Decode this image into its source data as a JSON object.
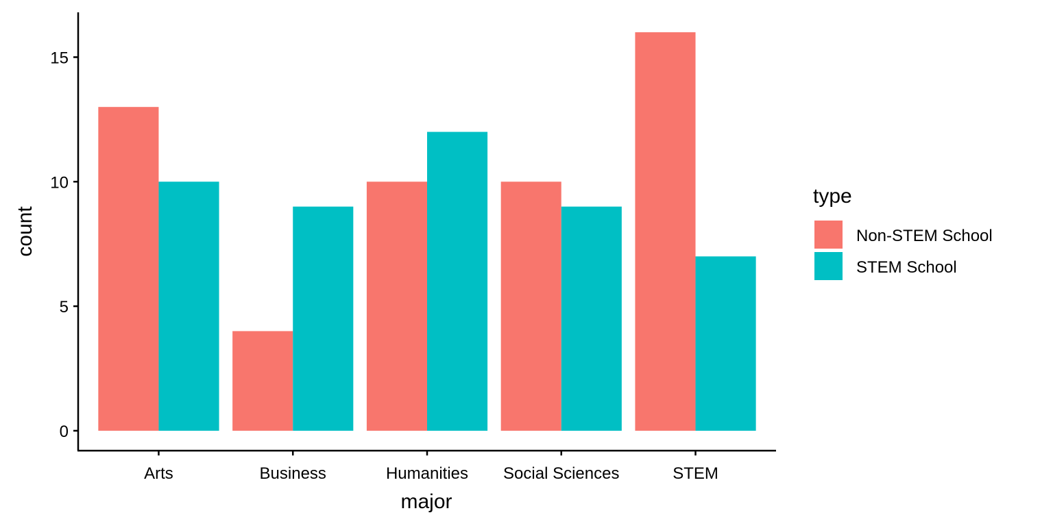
{
  "chart_data": {
    "type": "bar",
    "xlabel": "major",
    "ylabel": "count",
    "categories": [
      "Arts",
      "Business",
      "Humanities",
      "Social Sciences",
      "STEM"
    ],
    "series": [
      {
        "name": "Non-STEM School",
        "values": [
          13,
          4,
          10,
          10,
          16
        ],
        "color": "#F8766D"
      },
      {
        "name": "STEM School",
        "values": [
          10,
          9,
          12,
          9,
          7
        ],
        "color": "#00BFC4"
      }
    ],
    "yticks": [
      0,
      5,
      10,
      15
    ],
    "ylim": [
      -0.8,
      16.8
    ],
    "grid": false,
    "legend": {
      "title": "type",
      "placement": "right"
    }
  }
}
